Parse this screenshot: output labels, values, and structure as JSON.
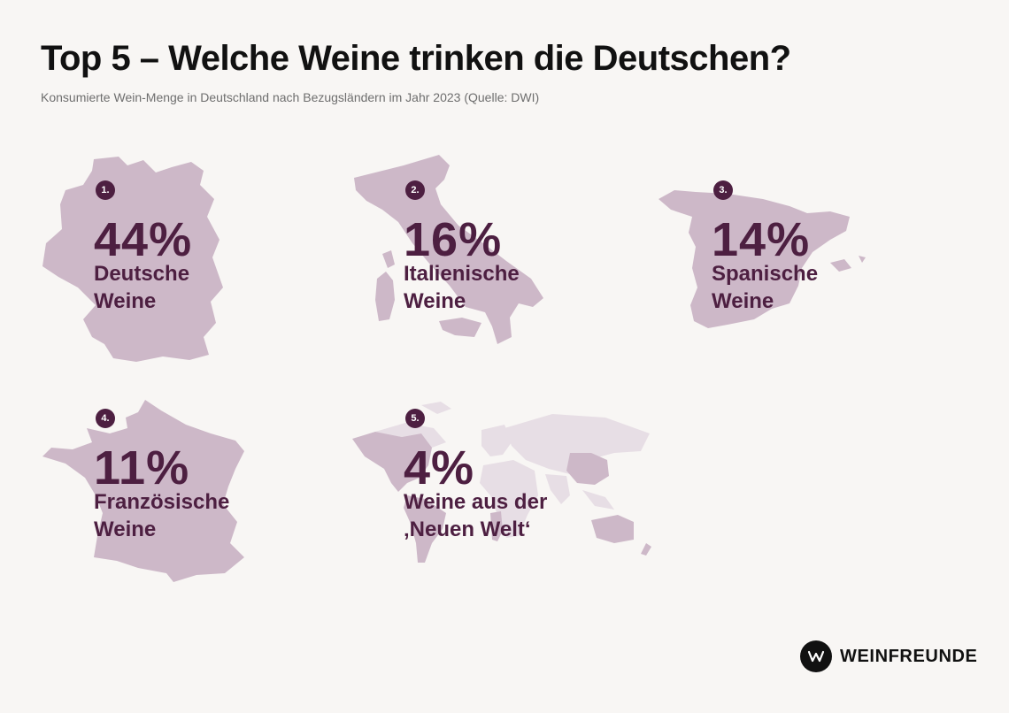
{
  "header": {
    "title": "Top 5 – Welche Weine trinken die Deutschen?",
    "subtitle": "Konsumierte Wein-Menge in Deutschland nach Bezugsländern im Jahr 2023 (Quelle: DWI)"
  },
  "chart_data": {
    "type": "table",
    "unit": "%",
    "items": [
      {
        "rank": "1.",
        "percent": "44%",
        "value": 44,
        "label_line1": "Deutsche",
        "label_line2": "Weine",
        "map_icon": "germany-map-icon"
      },
      {
        "rank": "2.",
        "percent": "16%",
        "value": 16,
        "label_line1": "Italienische",
        "label_line2": "Weine",
        "map_icon": "italy-map-icon"
      },
      {
        "rank": "3.",
        "percent": "14%",
        "value": 14,
        "label_line1": "Spanische",
        "label_line2": "Weine",
        "map_icon": "spain-map-icon"
      },
      {
        "rank": "4.",
        "percent": "11%",
        "value": 11,
        "label_line1": "Französische",
        "label_line2": "Weine",
        "map_icon": "france-map-icon"
      },
      {
        "rank": "5.",
        "percent": "4%",
        "value": 4,
        "label_line1": "Weine aus der",
        "label_line2": "‚Neuen Welt‘",
        "map_icon": "world-map-icon"
      }
    ]
  },
  "brand": {
    "name": "WEINFREUNDE",
    "logo_icon": "weinfreunde-logo-icon"
  },
  "colors": {
    "background": "#f8f6f4",
    "accent": "#4d1f41",
    "map_fill": "#cdb8c8",
    "map_light": "#e7dee5",
    "title": "#111111",
    "subtitle": "#6e6e6e"
  }
}
